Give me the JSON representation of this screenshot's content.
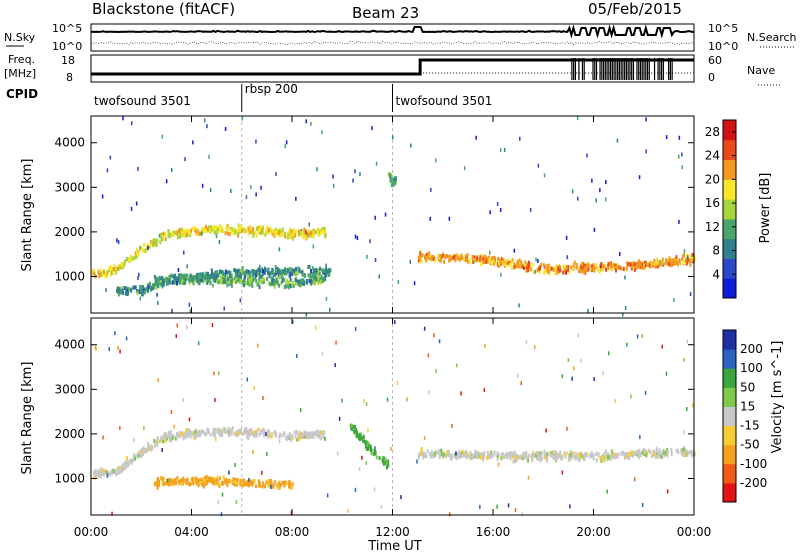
{
  "header": {
    "station": "Blackstone (fitACF)",
    "beam": "Beam 23",
    "date": "05/Feb/2015"
  },
  "noise_panel": {
    "left_label": "N.Sky",
    "right_label": "N.Search",
    "left_ticks": [
      "10^5",
      "10^0"
    ],
    "right_ticks": [
      "10^5",
      "10^0"
    ]
  },
  "freq_panel": {
    "left_label_1": "Freq.",
    "left_label_2": "[MHz]",
    "right_label": "Nave",
    "left_ticks": [
      "18",
      "8"
    ],
    "right_ticks": [
      "60",
      "0"
    ]
  },
  "cpid": {
    "label": "CPID",
    "segments": [
      {
        "label": "twofsound 3501",
        "start": "00:00"
      },
      {
        "label": "rbsp 200",
        "start": "06:00"
      },
      {
        "label": "twofsound 3501",
        "start": "12:00"
      }
    ]
  },
  "colors": {
    "power": [
      "#0b1fd6",
      "#2a48c8",
      "#2f7f8f",
      "#49a56a",
      "#a8d63a",
      "#f7e62a",
      "#f39a1e",
      "#ea4b1c",
      "#d31313"
    ],
    "velocity": [
      "#e21414",
      "#f05b16",
      "#f4a11f",
      "#f7cb32",
      "#c8c8c8",
      "#7fc94a",
      "#3aa63c",
      "#2c63c2",
      "#1e2fa3"
    ]
  },
  "chart_data": [
    {
      "type": "heatmap",
      "title": "Power",
      "xlabel": "",
      "ylabel": "Slant Range [km]",
      "xlim": [
        "00:00",
        "24:00"
      ],
      "ylim": [
        180,
        4600
      ],
      "x_ticks": [
        "00:00",
        "04:00",
        "08:00",
        "12:00",
        "16:00",
        "20:00",
        "00:00"
      ],
      "y_ticks": [
        1000,
        2000,
        3000,
        4000
      ],
      "colorbar": {
        "label": "Power [dB]",
        "ticks": [
          4,
          8,
          12,
          16,
          20,
          24,
          28
        ],
        "range": [
          0,
          30
        ]
      },
      "scatter_bands": [
        {
          "t": [
            0.0,
            0.5,
            1.0,
            2.0,
            3.0,
            5.0,
            7.0,
            8.0,
            9.3
          ],
          "range": [
            1100,
            1050,
            1150,
            1600,
            1950,
            2050,
            2000,
            1950,
            2000
          ],
          "power": 18
        },
        {
          "t": [
            2.5,
            4.0,
            6.0,
            8.0,
            9.3
          ],
          "range": [
            900,
            950,
            900,
            850,
            950
          ],
          "power": 12
        },
        {
          "t": [
            1.0,
            2.0,
            3.0,
            5.0,
            8.0,
            9.5
          ],
          "range": [
            650,
            700,
            900,
            1050,
            1100,
            1100
          ],
          "power": 10
        },
        {
          "t": [
            11.8,
            12.0,
            12.1
          ],
          "range": [
            3300,
            3100,
            3200
          ],
          "power": 14
        },
        {
          "t": [
            13.0,
            16.0,
            18.0,
            20.0,
            22.0,
            24.0
          ],
          "range": [
            1450,
            1350,
            1150,
            1200,
            1250,
            1400
          ],
          "power": 22
        }
      ]
    },
    {
      "type": "heatmap",
      "title": "Velocity",
      "xlabel": "Time UT",
      "ylabel": "Slant Range [km]",
      "xlim": [
        "00:00",
        "24:00"
      ],
      "ylim": [
        180,
        4600
      ],
      "x_ticks": [
        "00:00",
        "04:00",
        "08:00",
        "12:00",
        "16:00",
        "20:00",
        "00:00"
      ],
      "y_ticks": [
        1000,
        2000,
        3000,
        4000
      ],
      "colorbar": {
        "label": "Velocity [m s^-1]",
        "ticks": [
          "200",
          "100",
          "50",
          "15",
          "-15",
          "-50",
          "-100",
          "-200"
        ],
        "range": [
          -250,
          250
        ]
      },
      "scatter_bands": [
        {
          "t": [
            0.0,
            1.0,
            2.0,
            3.0,
            5.0,
            7.0,
            8.0,
            9.3
          ],
          "range": [
            1100,
            1150,
            1600,
            1950,
            2050,
            2000,
            1950,
            2000
          ],
          "velocity": 0
        },
        {
          "t": [
            2.5,
            4.0,
            6.0,
            8.0
          ],
          "range": [
            900,
            950,
            900,
            850
          ],
          "velocity": -60
        },
        {
          "t": [
            10.3,
            11.0,
            11.8
          ],
          "range": [
            2200,
            1700,
            1300
          ],
          "velocity": 60
        },
        {
          "t": [
            13.0,
            16.0,
            18.0,
            20.0,
            22.0,
            24.0
          ],
          "range": [
            1550,
            1500,
            1500,
            1500,
            1550,
            1600
          ],
          "velocity": 0
        }
      ]
    }
  ]
}
